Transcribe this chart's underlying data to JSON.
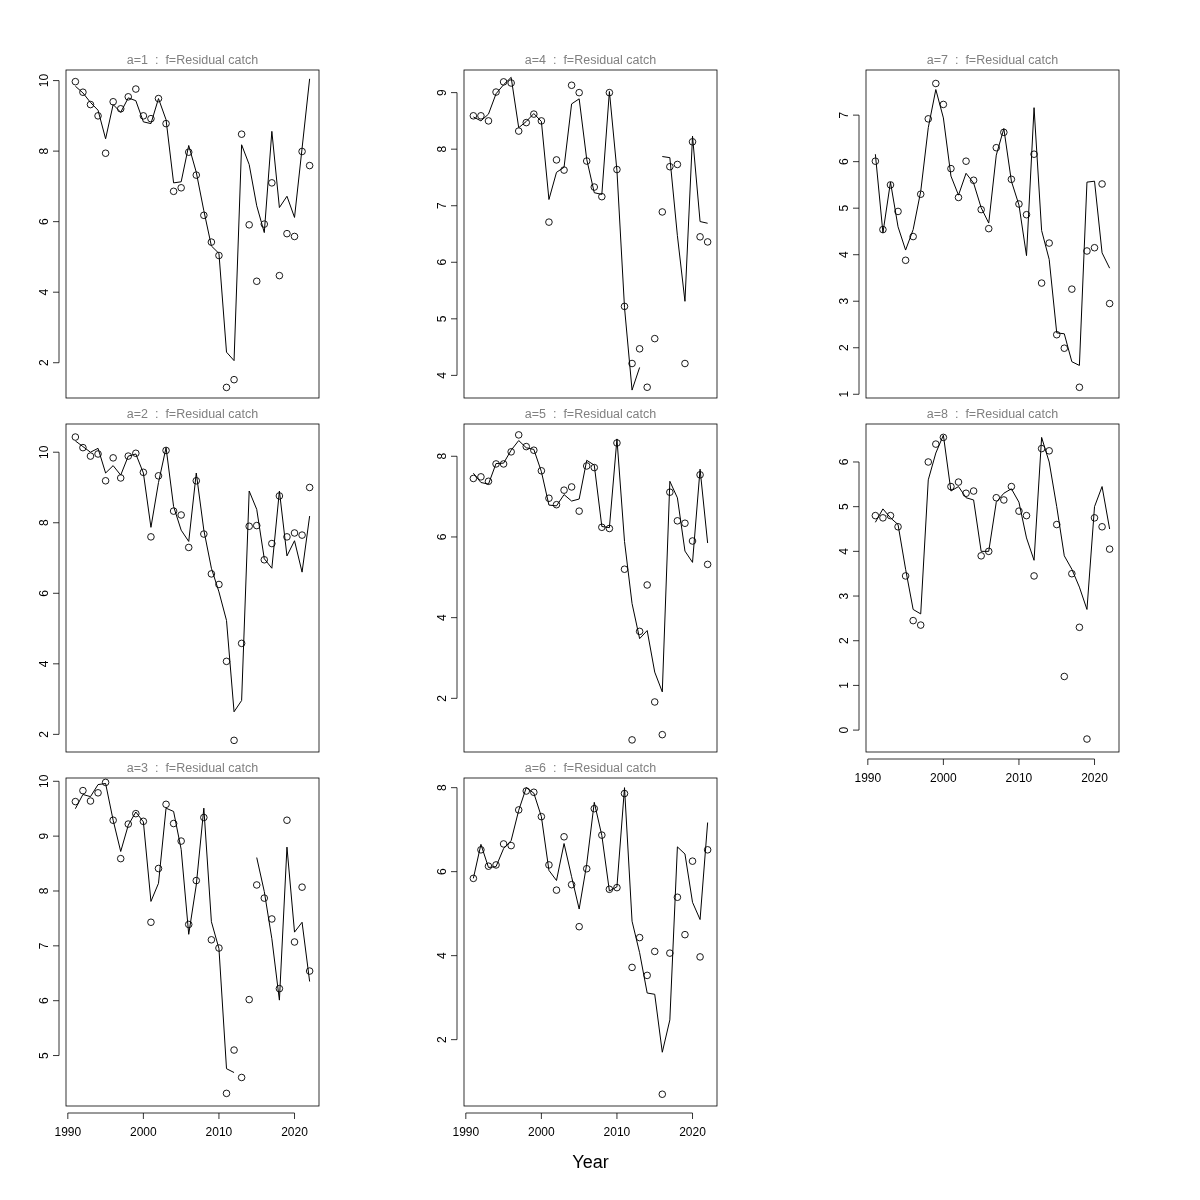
{
  "chart_data": [
    {
      "type": "line",
      "title": "a=1  :  f=Residual catch",
      "x": [
        1991,
        1992,
        1993,
        1994,
        1995,
        1996,
        1997,
        1998,
        1999,
        2000,
        2001,
        2002,
        2003,
        2004,
        2005,
        2006,
        2007,
        2008,
        2009,
        2010,
        2011,
        2012,
        2013,
        2014,
        2015,
        2016,
        2017,
        2018,
        2019,
        2020,
        2021,
        2022
      ],
      "xlim": [
        1989.76,
        2023.24
      ],
      "xticks": [
        1990,
        2000,
        2010,
        2020
      ],
      "ylim": [
        1.0,
        10.3
      ],
      "yticks": [
        2,
        4,
        6,
        8,
        10
      ],
      "tick_labels": "y",
      "series": [
        {
          "type": "scatter",
          "marker": "circle",
          "color": "#000000",
          "values": [
            9.97,
            9.67,
            9.32,
            9.0,
            7.94,
            9.4,
            9.2,
            9.54,
            9.76,
            9.0,
            8.92,
            9.49,
            8.78,
            6.86,
            6.96,
            7.97,
            7.32,
            6.18,
            5.42,
            5.04,
            1.3,
            1.52,
            8.48,
            5.91,
            4.31,
            5.93,
            7.1,
            4.47,
            5.66,
            5.58,
            7.99,
            7.59
          ]
        },
        {
          "type": "line",
          "color": "#000000",
          "values": [
            9.84,
            9.65,
            9.38,
            9.16,
            8.35,
            9.32,
            9.1,
            9.51,
            9.43,
            8.83,
            8.78,
            9.49,
            8.89,
            7.1,
            7.13,
            8.16,
            7.4,
            6.31,
            5.31,
            5.1,
            2.3,
            2.06,
            8.18,
            7.62,
            6.45,
            5.69,
            8.56,
            6.4,
            6.72,
            6.12,
            8.08,
            10.05
          ]
        }
      ]
    },
    {
      "type": "line",
      "title": "a=4  :  f=Residual catch",
      "x": [
        1991,
        1992,
        1993,
        1994,
        1995,
        1996,
        1997,
        1998,
        1999,
        2000,
        2001,
        2002,
        2003,
        2004,
        2005,
        2006,
        2007,
        2008,
        2009,
        2010,
        2011,
        2012,
        2013,
        2014,
        2015,
        2016,
        2017,
        2018,
        2019,
        2020,
        2021,
        2022
      ],
      "xlim": [
        1989.76,
        2023.24
      ],
      "xticks": [
        1990,
        2000,
        2010,
        2020
      ],
      "ylim": [
        3.6,
        9.4
      ],
      "yticks": [
        4,
        5,
        6,
        7,
        8,
        9
      ],
      "tick_labels": "y",
      "series": [
        {
          "type": "scatter",
          "marker": "circle",
          "color": "#000000",
          "values": [
            8.59,
            8.59,
            8.5,
            9.01,
            9.19,
            9.17,
            8.32,
            8.47,
            8.62,
            8.5,
            6.71,
            7.81,
            7.63,
            9.13,
            9.0,
            7.79,
            7.33,
            7.16,
            9.0,
            7.64,
            5.22,
            4.21,
            4.47,
            3.79,
            4.65,
            6.89,
            7.69,
            7.73,
            4.21,
            8.13,
            6.45,
            6.36
          ]
        },
        {
          "type": "line",
          "color": "#000000",
          "values": [
            8.57,
            8.5,
            8.62,
            8.98,
            9.14,
            9.27,
            8.38,
            8.49,
            8.63,
            8.49,
            7.11,
            7.59,
            7.68,
            8.8,
            8.89,
            7.82,
            7.23,
            7.2,
            9.02,
            7.62,
            5.2,
            3.74,
            4.14,
            null,
            null,
            7.87,
            7.85,
            6.47,
            5.31,
            8.23,
            6.72,
            6.69
          ]
        }
      ]
    },
    {
      "type": "line",
      "title": "a=7  :  f=Residual catch",
      "x": [
        1991,
        1992,
        1993,
        1994,
        1995,
        1996,
        1997,
        1998,
        1999,
        2000,
        2001,
        2002,
        2003,
        2004,
        2005,
        2006,
        2007,
        2008,
        2009,
        2010,
        2011,
        2012,
        2013,
        2014,
        2015,
        2016,
        2017,
        2018,
        2019,
        2020,
        2021,
        2022
      ],
      "xlim": [
        1989.76,
        2023.24
      ],
      "xticks": [
        1990,
        2000,
        2010,
        2020
      ],
      "ylim": [
        0.92,
        7.97
      ],
      "yticks": [
        1,
        2,
        3,
        4,
        5,
        6,
        7
      ],
      "tick_labels": "y",
      "series": [
        {
          "type": "scatter",
          "marker": "circle",
          "color": "#000000",
          "values": [
            6.01,
            4.54,
            5.5,
            4.93,
            3.88,
            4.39,
            5.3,
            6.92,
            7.68,
            7.23,
            5.85,
            5.23,
            6.01,
            5.6,
            4.97,
            4.56,
            6.3,
            6.63,
            5.62,
            5.09,
            4.86,
            6.16,
            3.39,
            4.25,
            2.28,
            1.99,
            3.26,
            1.15,
            4.08,
            4.15,
            5.52,
            2.95
          ]
        },
        {
          "type": "line",
          "color": "#000000",
          "values": [
            6.16,
            4.47,
            5.56,
            4.6,
            4.1,
            4.54,
            5.36,
            6.73,
            7.55,
            6.94,
            5.69,
            5.28,
            5.75,
            5.54,
            5.01,
            4.68,
            6.14,
            6.71,
            5.58,
            5.07,
            3.98,
            7.16,
            4.52,
            3.9,
            2.32,
            2.3,
            1.7,
            1.62,
            5.56,
            5.58,
            4.04,
            3.71
          ]
        }
      ]
    },
    {
      "type": "line",
      "title": "a=2  :  f=Residual catch",
      "x": [
        1991,
        1992,
        1993,
        1994,
        1995,
        1996,
        1997,
        1998,
        1999,
        2000,
        2001,
        2002,
        2003,
        2004,
        2005,
        2006,
        2007,
        2008,
        2009,
        2010,
        2011,
        2012,
        2013,
        2014,
        2015,
        2016,
        2017,
        2018,
        2019,
        2020,
        2021,
        2022
      ],
      "xlim": [
        1989.76,
        2023.24
      ],
      "xticks": [
        1990,
        2000,
        2010,
        2020
      ],
      "ylim": [
        1.5,
        10.8
      ],
      "yticks": [
        2,
        4,
        6,
        8,
        10
      ],
      "tick_labels": "y",
      "series": [
        {
          "type": "scatter",
          "marker": "circle",
          "color": "#000000",
          "values": [
            10.43,
            10.13,
            9.89,
            9.95,
            9.19,
            9.84,
            9.27,
            9.89,
            9.97,
            9.43,
            7.6,
            9.33,
            10.05,
            8.33,
            8.22,
            7.3,
            9.19,
            7.68,
            6.55,
            6.25,
            4.07,
            1.83,
            4.58,
            7.9,
            7.92,
            6.95,
            7.41,
            8.76,
            7.6,
            7.71,
            7.65,
            9.0
          ]
        },
        {
          "type": "line",
          "color": "#000000",
          "values": [
            10.32,
            10.16,
            10.0,
            10.11,
            9.41,
            9.62,
            9.35,
            9.89,
            9.95,
            9.41,
            7.87,
            9.14,
            10.13,
            8.46,
            7.79,
            7.47,
            9.41,
            7.79,
            6.71,
            6.04,
            5.23,
            2.64,
            2.96,
            8.9,
            8.38,
            6.98,
            6.71,
            8.9,
            7.06,
            7.49,
            6.6,
            8.19
          ]
        }
      ]
    },
    {
      "type": "line",
      "title": "a=5  :  f=Residual catch",
      "x": [
        1991,
        1992,
        1993,
        1994,
        1995,
        1996,
        1997,
        1998,
        1999,
        2000,
        2001,
        2002,
        2003,
        2004,
        2005,
        2006,
        2007,
        2008,
        2009,
        2010,
        2011,
        2012,
        2013,
        2014,
        2015,
        2016,
        2017,
        2018,
        2019,
        2020,
        2021,
        2022
      ],
      "xlim": [
        1989.76,
        2023.24
      ],
      "xticks": [
        1990,
        2000,
        2010,
        2020
      ],
      "ylim": [
        0.67,
        8.8
      ],
      "yticks": [
        2,
        4,
        6,
        8
      ],
      "tick_labels": "y",
      "series": [
        {
          "type": "scatter",
          "marker": "circle",
          "color": "#000000",
          "values": [
            7.45,
            7.49,
            7.38,
            7.81,
            7.81,
            8.11,
            8.53,
            8.24,
            8.15,
            7.64,
            6.96,
            6.8,
            7.16,
            7.24,
            6.64,
            7.76,
            7.72,
            6.24,
            6.21,
            8.33,
            5.2,
            0.97,
            3.66,
            4.81,
            1.91,
            1.1,
            7.11,
            6.4,
            6.34,
            5.9,
            7.54,
            5.32
          ]
        },
        {
          "type": "line",
          "color": "#000000",
          "values": [
            7.58,
            7.35,
            7.31,
            7.82,
            7.83,
            8.15,
            8.39,
            8.21,
            8.17,
            7.62,
            6.79,
            6.77,
            7.05,
            6.89,
            6.94,
            7.9,
            7.78,
            6.26,
            6.23,
            8.43,
            5.89,
            4.35,
            3.48,
            3.68,
            2.65,
            2.16,
            7.38,
            6.97,
            5.65,
            5.37,
            7.68,
            5.85
          ]
        }
      ]
    },
    {
      "type": "line",
      "title": "a=8  :  f=Residual catch",
      "x": [
        1991,
        1992,
        1993,
        1994,
        1995,
        1996,
        1997,
        1998,
        1999,
        2000,
        2001,
        2002,
        2003,
        2004,
        2005,
        2006,
        2007,
        2008,
        2009,
        2010,
        2011,
        2012,
        2013,
        2014,
        2015,
        2016,
        2017,
        2018,
        2019,
        2020,
        2021,
        2022
      ],
      "xlim": [
        1989.76,
        2023.24
      ],
      "xticks": [
        1990,
        2000,
        2010,
        2020
      ],
      "ylim": [
        -0.49,
        6.85
      ],
      "yticks": [
        0,
        1,
        2,
        3,
        4,
        5,
        6
      ],
      "series": [
        {
          "type": "scatter",
          "marker": "circle",
          "color": "#000000",
          "values": [
            4.8,
            4.75,
            4.8,
            4.55,
            3.45,
            2.45,
            2.35,
            6.0,
            6.4,
            6.55,
            5.45,
            5.55,
            5.3,
            5.35,
            3.9,
            4.0,
            5.2,
            5.15,
            5.45,
            4.9,
            4.8,
            3.45,
            6.3,
            6.25,
            4.6,
            1.2,
            3.5,
            2.3,
            -0.2,
            4.75,
            4.55,
            4.05
          ]
        },
        {
          "type": "line",
          "color": "#000000",
          "values": [
            4.65,
            4.95,
            4.75,
            4.6,
            3.6,
            2.7,
            2.6,
            5.6,
            6.2,
            6.6,
            5.35,
            5.45,
            5.2,
            5.15,
            4.0,
            4.0,
            5.1,
            5.3,
            5.4,
            5.1,
            4.3,
            3.8,
            6.55,
            6.0,
            5.0,
            3.9,
            3.6,
            3.2,
            2.7,
            5.0,
            5.45,
            4.5
          ]
        }
      ]
    },
    {
      "type": "line",
      "title": "a=3  :  f=Residual catch",
      "x": [
        1991,
        1992,
        1993,
        1994,
        1995,
        1996,
        1997,
        1998,
        1999,
        2000,
        2001,
        2002,
        2003,
        2004,
        2005,
        2006,
        2007,
        2008,
        2009,
        2010,
        2011,
        2012,
        2013,
        2014,
        2015,
        2016,
        2017,
        2018,
        2019,
        2020,
        2021,
        2022
      ],
      "xlim": [
        1989.76,
        2023.24
      ],
      "xticks": [
        1990,
        2000,
        2010,
        2020
      ],
      "ylim": [
        4.08,
        10.06
      ],
      "yticks": [
        5,
        6,
        7,
        8,
        9,
        10
      ],
      "series": [
        {
          "type": "scatter",
          "marker": "circle",
          "color": "#000000",
          "values": [
            9.63,
            9.83,
            9.64,
            9.79,
            9.98,
            9.29,
            8.59,
            9.22,
            9.41,
            9.27,
            7.43,
            8.41,
            9.58,
            9.23,
            8.91,
            7.39,
            8.19,
            9.34,
            7.11,
            6.96,
            4.31,
            5.1,
            4.6,
            6.02,
            8.11,
            7.87,
            7.49,
            6.22,
            9.29,
            7.07,
            8.07,
            6.54
          ]
        },
        {
          "type": "line",
          "color": "#000000",
          "values": [
            9.5,
            9.76,
            9.72,
            9.94,
            9.96,
            9.29,
            8.72,
            9.2,
            9.44,
            9.26,
            7.81,
            8.14,
            9.51,
            9.45,
            8.76,
            7.21,
            8.11,
            9.51,
            7.44,
            6.95,
            4.76,
            4.69,
            null,
            null,
            8.61,
            7.99,
            7.13,
            6.01,
            8.8,
            7.25,
            7.43,
            6.35
          ]
        }
      ]
    },
    {
      "type": "line",
      "title": "a=6  :  f=Residual catch",
      "xlabel": "Year",
      "x": [
        1991,
        1992,
        1993,
        1994,
        1995,
        1996,
        1997,
        1998,
        1999,
        2000,
        2001,
        2002,
        2003,
        2004,
        2005,
        2006,
        2007,
        2008,
        2009,
        2010,
        2011,
        2012,
        2013,
        2014,
        2015,
        2016,
        2017,
        2018,
        2019,
        2020,
        2021,
        2022
      ],
      "xlim": [
        1989.76,
        2023.24
      ],
      "xticks": [
        1990,
        2000,
        2010,
        2020
      ],
      "ylim": [
        0.42,
        8.23
      ],
      "yticks": [
        2,
        4,
        6,
        8
      ],
      "series": [
        {
          "type": "scatter",
          "marker": "circle",
          "color": "#000000",
          "values": [
            5.84,
            6.52,
            6.13,
            6.16,
            6.66,
            6.62,
            7.47,
            7.92,
            7.89,
            7.31,
            6.16,
            5.56,
            6.83,
            5.69,
            4.69,
            6.07,
            7.5,
            6.87,
            5.58,
            5.62,
            7.86,
            3.72,
            4.43,
            3.53,
            4.1,
            0.7,
            4.06,
            5.39,
            4.5,
            6.25,
            3.97,
            6.52
          ]
        },
        {
          "type": "line",
          "color": "#000000",
          "values": [
            5.84,
            6.65,
            6.1,
            6.12,
            6.55,
            6.74,
            7.46,
            8.0,
            7.87,
            7.31,
            6.03,
            5.79,
            6.67,
            5.88,
            5.11,
            6.18,
            7.65,
            6.86,
            5.54,
            5.64,
            8.0,
            4.82,
            4.07,
            3.11,
            3.08,
            1.7,
            2.47,
            6.59,
            6.42,
            5.27,
            4.86,
            7.17
          ]
        }
      ]
    }
  ]
}
